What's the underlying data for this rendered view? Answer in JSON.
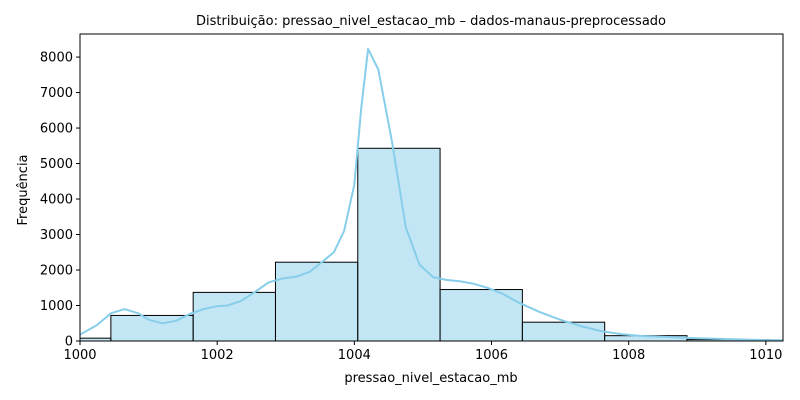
{
  "chart_data": {
    "type": "histogram",
    "title": "Distribuição: pressao_nivel_estacao_mb – dados-manaus-preprocessado",
    "xlabel": "pressao_nivel_estacao_mb",
    "ylabel": "Frequência",
    "xlim": [
      1000,
      1010.25
    ],
    "ylim": [
      0,
      8650
    ],
    "xticks": [
      1000,
      1002,
      1004,
      1006,
      1008,
      1010
    ],
    "yticks": [
      0,
      1000,
      2000,
      3000,
      4000,
      5000,
      6000,
      7000,
      8000
    ],
    "grid": false,
    "bars": [
      {
        "x0": 999.4,
        "x1": 1000.45,
        "value": 80
      },
      {
        "x0": 1000.45,
        "x1": 1001.65,
        "value": 720
      },
      {
        "x0": 1001.65,
        "x1": 1002.85,
        "value": 1370
      },
      {
        "x0": 1002.85,
        "x1": 1004.05,
        "value": 2220
      },
      {
        "x0": 1004.05,
        "x1": 1005.25,
        "value": 5430
      },
      {
        "x0": 1005.25,
        "x1": 1006.45,
        "value": 1450
      },
      {
        "x0": 1006.45,
        "x1": 1007.65,
        "value": 530
      },
      {
        "x0": 1007.65,
        "x1": 1008.85,
        "value": 150
      },
      {
        "x0": 1008.85,
        "x1": 1010.05,
        "value": 40
      }
    ],
    "bar_color": "#87CEEB",
    "bar_edge_color": "#000000",
    "kde": {
      "color": "#87CEEB",
      "x": [
        1000.0,
        1000.25,
        1000.45,
        1000.65,
        1000.85,
        1001.0,
        1001.2,
        1001.4,
        1001.6,
        1001.8,
        1002.0,
        1002.15,
        1002.35,
        1002.55,
        1002.75,
        1002.95,
        1003.15,
        1003.35,
        1003.55,
        1003.7,
        1003.85,
        1004.0,
        1004.1,
        1004.2,
        1004.35,
        1004.55,
        1004.75,
        1004.95,
        1005.15,
        1005.35,
        1005.55,
        1005.75,
        1005.95,
        1006.15,
        1006.4,
        1006.7,
        1007.0,
        1007.3,
        1007.6,
        1007.9,
        1008.2,
        1008.6,
        1009.0,
        1009.4,
        1009.8,
        1010.25
      ],
      "y": [
        180,
        450,
        780,
        900,
        780,
        600,
        500,
        570,
        760,
        900,
        980,
        1000,
        1130,
        1380,
        1650,
        1760,
        1810,
        1950,
        2260,
        2500,
        3100,
        4400,
        6550,
        8230,
        7650,
        5600,
        3200,
        2150,
        1800,
        1720,
        1680,
        1610,
        1490,
        1340,
        1080,
        820,
        600,
        420,
        280,
        190,
        140,
        110,
        80,
        55,
        35,
        20
      ]
    }
  }
}
